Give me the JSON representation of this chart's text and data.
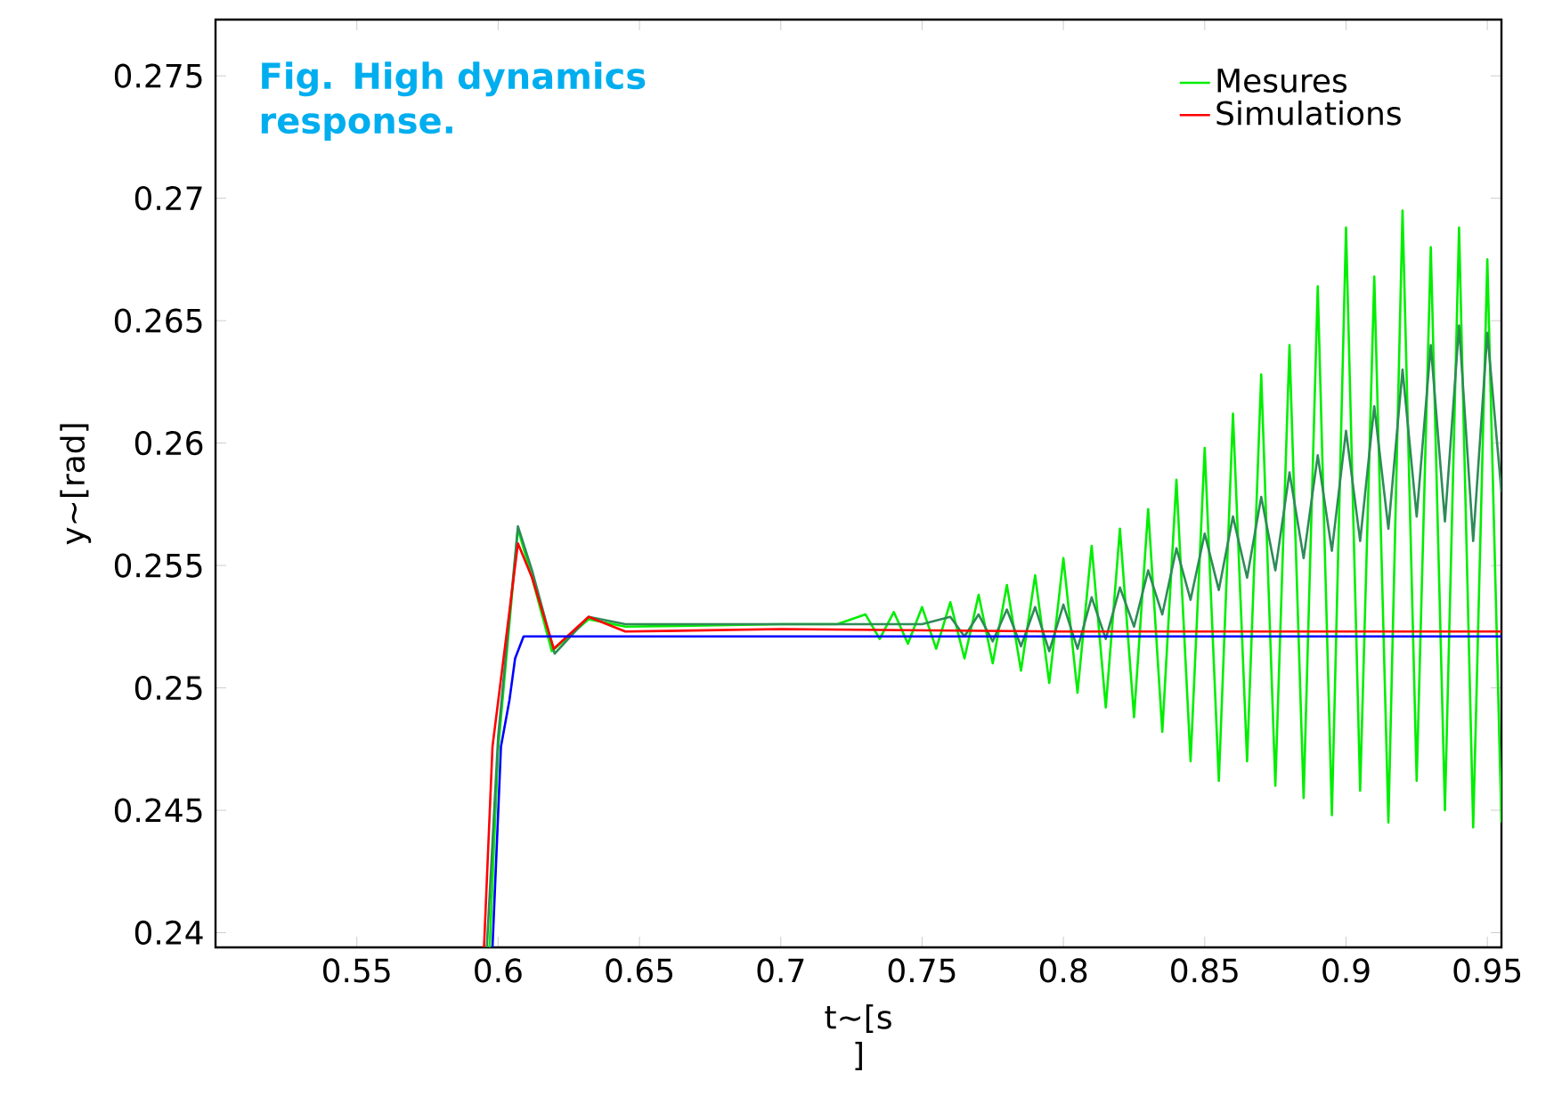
{
  "chart_data": {
    "type": "line",
    "title": "Fig. High dynamics response.",
    "xlabel": "t~[s ]",
    "ylabel": "y~[rad]",
    "xlim": [
      0.5,
      0.955
    ],
    "ylim": [
      0.2394,
      0.2773
    ],
    "xticks": [
      0.55,
      0.6,
      0.65,
      0.7,
      0.75,
      0.8,
      0.85,
      0.9,
      0.95
    ],
    "yticks": [
      0.24,
      0.245,
      0.25,
      0.255,
      0.26,
      0.265,
      0.27,
      0.275
    ],
    "legend": "top right",
    "line_style": "solid",
    "marker": "none",
    "series": [
      {
        "name": "Mesures",
        "color": "#00ee00",
        "x": [
          0.597,
          0.6,
          0.607,
          0.612,
          0.619,
          0.632,
          0.645,
          0.7,
          0.72,
          0.73,
          0.735,
          0.74,
          0.745,
          0.75,
          0.755,
          0.76,
          0.765,
          0.77,
          0.775,
          0.78,
          0.785,
          0.79,
          0.795,
          0.8,
          0.805,
          0.81,
          0.815,
          0.82,
          0.825,
          0.83,
          0.835,
          0.84,
          0.845,
          0.85,
          0.855,
          0.86,
          0.865,
          0.87,
          0.875,
          0.88,
          0.885,
          0.89,
          0.895,
          0.9,
          0.905,
          0.91,
          0.915,
          0.92,
          0.925,
          0.93,
          0.935,
          0.94,
          0.945,
          0.95,
          0.955
        ],
        "values": [
          0.2394,
          0.2475,
          0.2565,
          0.2545,
          0.2515,
          0.2528,
          0.2525,
          0.2526,
          0.2526,
          0.253,
          0.252,
          0.2531,
          0.2518,
          0.2533,
          0.2516,
          0.2535,
          0.2512,
          0.2538,
          0.251,
          0.2542,
          0.2507,
          0.2546,
          0.2502,
          0.2553,
          0.2498,
          0.2558,
          0.2492,
          0.2565,
          0.2488,
          0.2573,
          0.2482,
          0.2585,
          0.247,
          0.2598,
          0.2462,
          0.2612,
          0.247,
          0.2628,
          0.246,
          0.264,
          0.2455,
          0.2664,
          0.2448,
          0.2688,
          0.2458,
          0.2668,
          0.2445,
          0.2695,
          0.2462,
          0.268,
          0.245,
          0.2688,
          0.2443,
          0.2675,
          0.2445
        ]
      },
      {
        "color": "#2e8b57",
        "x": [
          0.596,
          0.6,
          0.607,
          0.612,
          0.62,
          0.632,
          0.645,
          0.75,
          0.76,
          0.765,
          0.77,
          0.775,
          0.78,
          0.785,
          0.79,
          0.795,
          0.8,
          0.805,
          0.81,
          0.815,
          0.82,
          0.825,
          0.83,
          0.835,
          0.84,
          0.845,
          0.85,
          0.855,
          0.86,
          0.865,
          0.87,
          0.875,
          0.88,
          0.885,
          0.89,
          0.895,
          0.9,
          0.905,
          0.91,
          0.915,
          0.92,
          0.925,
          0.93,
          0.935,
          0.94,
          0.945,
          0.95,
          0.955
        ],
        "values": [
          0.2394,
          0.248,
          0.2566,
          0.2548,
          0.2514,
          0.2529,
          0.2526,
          0.2526,
          0.2529,
          0.2521,
          0.253,
          0.2519,
          0.2532,
          0.2517,
          0.2533,
          0.2515,
          0.2534,
          0.2516,
          0.2537,
          0.252,
          0.2541,
          0.2525,
          0.2548,
          0.253,
          0.2557,
          0.2536,
          0.2563,
          0.254,
          0.257,
          0.2545,
          0.2578,
          0.2548,
          0.2588,
          0.2553,
          0.2595,
          0.2556,
          0.2605,
          0.256,
          0.2615,
          0.2565,
          0.263,
          0.257,
          0.264,
          0.2568,
          0.2648,
          0.256,
          0.2645,
          0.258
        ]
      },
      {
        "name": "Simulations",
        "color": "#ff0000",
        "x": [
          0.595,
          0.598,
          0.607,
          0.612,
          0.6197,
          0.632,
          0.645,
          0.7,
          0.8,
          0.955
        ],
        "values": [
          0.2394,
          0.2476,
          0.2559,
          0.2545,
          0.2516,
          0.2529,
          0.2523,
          0.2524,
          0.2523,
          0.2523
        ]
      },
      {
        "color": "#0000ff",
        "x": [
          0.598,
          0.601,
          0.604,
          0.606,
          0.609,
          0.955
        ],
        "values": [
          0.2394,
          0.2476,
          0.2495,
          0.2512,
          0.2521,
          0.2521
        ]
      }
    ]
  }
}
